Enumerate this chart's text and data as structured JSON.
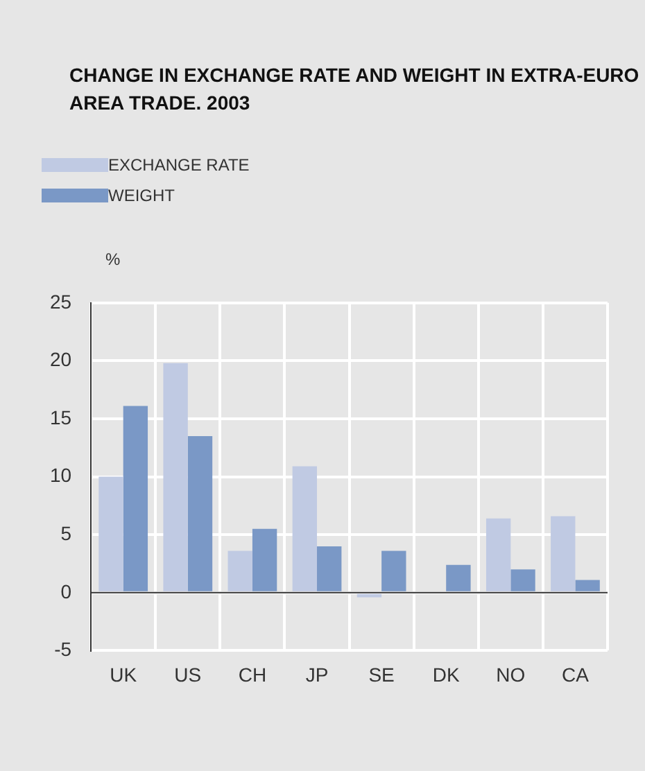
{
  "chart_data": {
    "type": "bar",
    "title": "CHANGE IN EXCHANGE RATE AND WEIGHT IN EXTRA-EURO AREA TRADE. 2003",
    "ylabel": "%",
    "categories": [
      "UK",
      "US",
      "CH",
      "JP",
      "SE",
      "DK",
      "NO",
      "CA"
    ],
    "series": [
      {
        "name": "EXCHANGE RATE",
        "color": "#c0cae3",
        "values": [
          10,
          19.8,
          3.6,
          10.9,
          -0.4,
          0,
          6.4,
          6.6
        ]
      },
      {
        "name": "WEIGHT",
        "color": "#7a98c6",
        "values": [
          16.1,
          13.5,
          5.5,
          4.0,
          3.6,
          2.4,
          2.0,
          1.1
        ]
      }
    ],
    "ylim": [
      -5,
      25
    ],
    "yticks": [
      -5,
      0,
      5,
      10,
      15,
      20,
      25
    ],
    "grid": true,
    "legend": "top left"
  }
}
